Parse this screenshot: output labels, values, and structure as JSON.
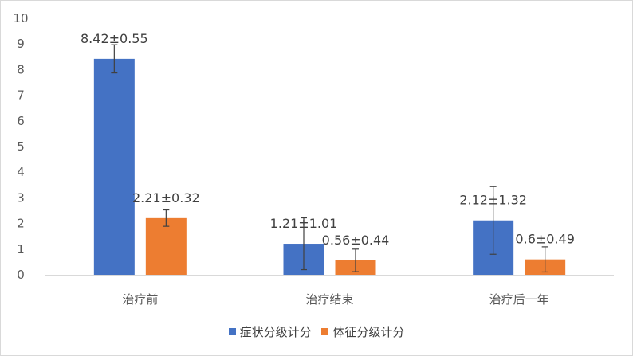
{
  "chart_data": {
    "type": "bar",
    "categories": [
      "治疗前",
      "治疗结束",
      "治疗后一年"
    ],
    "series": [
      {
        "name": "症状分级计分",
        "color": "#4472C4",
        "values": [
          8.42,
          1.21,
          2.12
        ],
        "errors": [
          0.55,
          1.01,
          1.32
        ],
        "labels": [
          "8.42±0.55",
          "1.21±1.01",
          "2.12±1.32"
        ]
      },
      {
        "name": "体征分级计分",
        "color": "#ED7D31",
        "values": [
          2.21,
          0.56,
          0.6
        ],
        "errors": [
          0.32,
          0.44,
          0.49
        ],
        "labels": [
          "2.21±0.32",
          "0.56±0.44",
          "0.6±0.49"
        ]
      }
    ],
    "ylim": [
      0,
      10
    ],
    "yticks": [
      "0",
      "1",
      "2",
      "3",
      "4",
      "5",
      "6",
      "7",
      "8",
      "9",
      "10"
    ],
    "grid": false,
    "error_bars": true,
    "legend_position": "bottom"
  }
}
